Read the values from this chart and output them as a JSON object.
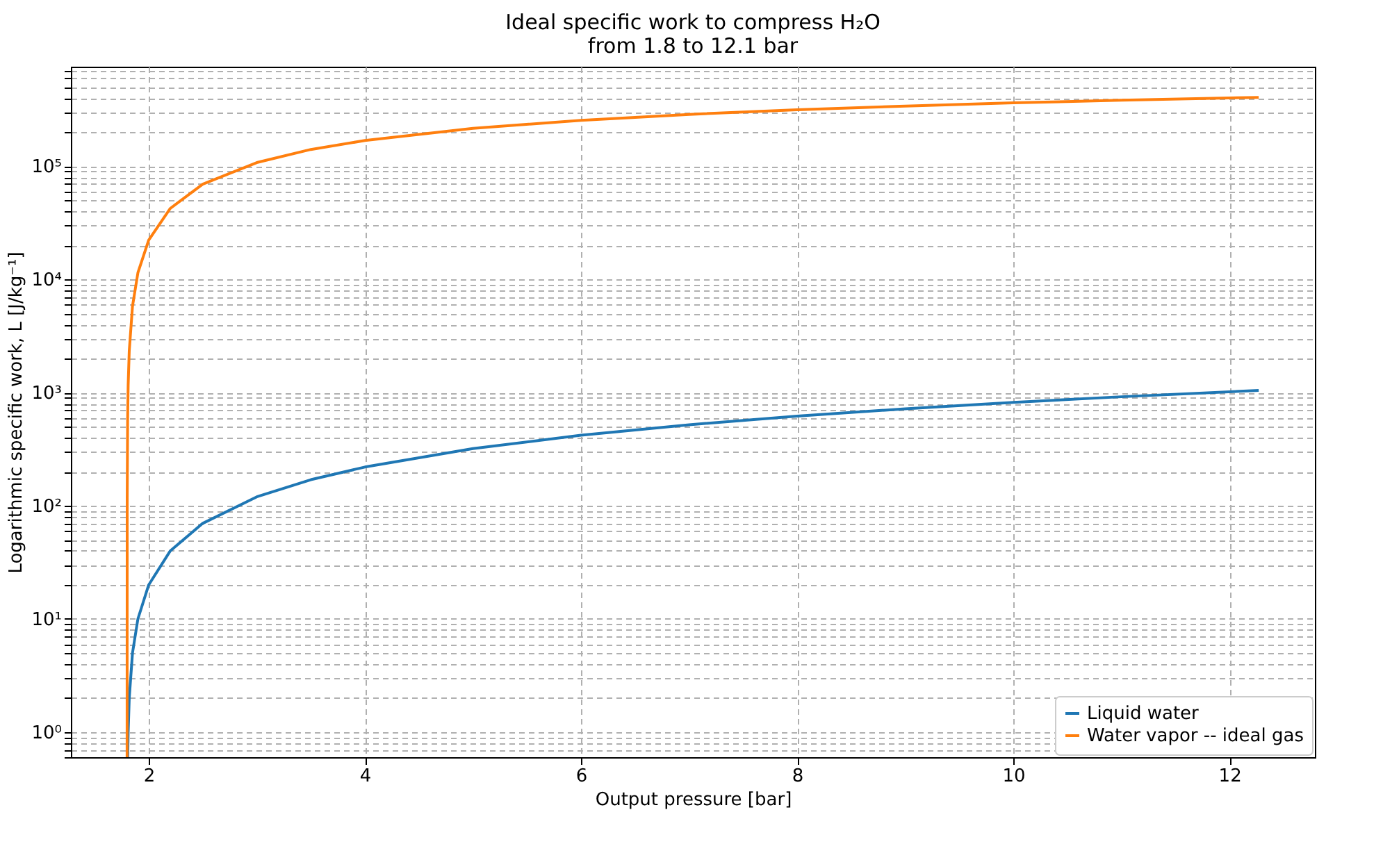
{
  "chart_data": {
    "type": "line",
    "title": "Ideal specific work to compress H₂O\nfrom 1.8 to 12.1 bar",
    "xlabel": "Output pressure [bar]",
    "ylabel": "Logarithmic specific work, L [J/kg⁻¹]",
    "series": [
      {
        "name": "Liquid water",
        "color": "#1f77b4",
        "x": [
          1.806,
          1.81,
          1.82,
          1.85,
          1.9,
          2,
          2.2,
          2.5,
          3,
          3.5,
          4,
          5,
          6,
          7,
          8,
          9,
          10,
          11,
          12.27
        ],
        "values": [
          0.6,
          1,
          2,
          5,
          10,
          20,
          40,
          70,
          120,
          170,
          220,
          320,
          420,
          520,
          620,
          720,
          820,
          920,
          1047
        ]
      },
      {
        "name": "Water vapor -- ideal gas",
        "color": "#ff7f0e",
        "x": [
          1.8,
          1.801,
          1.805,
          1.81,
          1.82,
          1.85,
          1.9,
          2,
          2.2,
          2.5,
          3,
          3.5,
          4,
          5,
          6,
          7,
          8,
          9,
          10,
          11,
          12.27
        ],
        "values": [
          0.6,
          118,
          589,
          1170,
          2340,
          5800,
          11460,
          22300,
          42500,
          69600,
          108000,
          141000,
          169000,
          217000,
          255000,
          288000,
          316000,
          341000,
          364000,
          384000,
          407000
        ]
      }
    ],
    "log": true,
    "xlim": [
      1.28,
      12.79
    ],
    "xticks": [
      2,
      4,
      6,
      8,
      10,
      12
    ],
    "ylim": [
      0.6,
      760000
    ],
    "yticks": [
      {
        "value": 0.6,
        "label": null
      },
      {
        "value": 0.7,
        "label": null
      },
      {
        "value": 0.8,
        "label": null
      },
      {
        "value": 0.9,
        "label": null
      },
      {
        "value": 1,
        "label": "10⁰"
      },
      {
        "value": 2,
        "label": null
      },
      {
        "value": 3,
        "label": null
      },
      {
        "value": 4,
        "label": null
      },
      {
        "value": 5,
        "label": null
      },
      {
        "value": 6,
        "label": null
      },
      {
        "value": 7,
        "label": null
      },
      {
        "value": 8,
        "label": null
      },
      {
        "value": 9,
        "label": null
      },
      {
        "value": 10,
        "label": "10¹"
      },
      {
        "value": 20,
        "label": null
      },
      {
        "value": 30,
        "label": null
      },
      {
        "value": 40,
        "label": null
      },
      {
        "value": 50,
        "label": null
      },
      {
        "value": 60,
        "label": null
      },
      {
        "value": 70,
        "label": null
      },
      {
        "value": 80,
        "label": null
      },
      {
        "value": 90,
        "label": null
      },
      {
        "value": 100,
        "label": "10²"
      },
      {
        "value": 200,
        "label": null
      },
      {
        "value": 300,
        "label": null
      },
      {
        "value": 400,
        "label": null
      },
      {
        "value": 500,
        "label": null
      },
      {
        "value": 600,
        "label": null
      },
      {
        "value": 700,
        "label": null
      },
      {
        "value": 800,
        "label": null
      },
      {
        "value": 900,
        "label": null
      },
      {
        "value": 1000,
        "label": "10³"
      },
      {
        "value": 2000,
        "label": null
      },
      {
        "value": 3000,
        "label": null
      },
      {
        "value": 4000,
        "label": null
      },
      {
        "value": 5000,
        "label": null
      },
      {
        "value": 6000,
        "label": null
      },
      {
        "value": 7000,
        "label": null
      },
      {
        "value": 8000,
        "label": null
      },
      {
        "value": 9000,
        "label": null
      },
      {
        "value": 10000,
        "label": "10⁴"
      },
      {
        "value": 20000,
        "label": null
      },
      {
        "value": 30000,
        "label": null
      },
      {
        "value": 40000,
        "label": null
      },
      {
        "value": 50000,
        "label": null
      },
      {
        "value": 60000,
        "label": null
      },
      {
        "value": 70000,
        "label": null
      },
      {
        "value": 80000,
        "label": null
      },
      {
        "value": 90000,
        "label": null
      },
      {
        "value": 100000,
        "label": "10⁵"
      },
      {
        "value": 200000,
        "label": null
      },
      {
        "value": 300000,
        "label": null
      },
      {
        "value": 400000,
        "label": null
      },
      {
        "value": 500000,
        "label": null
      },
      {
        "value": 600000,
        "label": null
      },
      {
        "value": 700000,
        "label": null
      }
    ],
    "grid": true,
    "legend": "bottom right",
    "line_style": "solid"
  }
}
